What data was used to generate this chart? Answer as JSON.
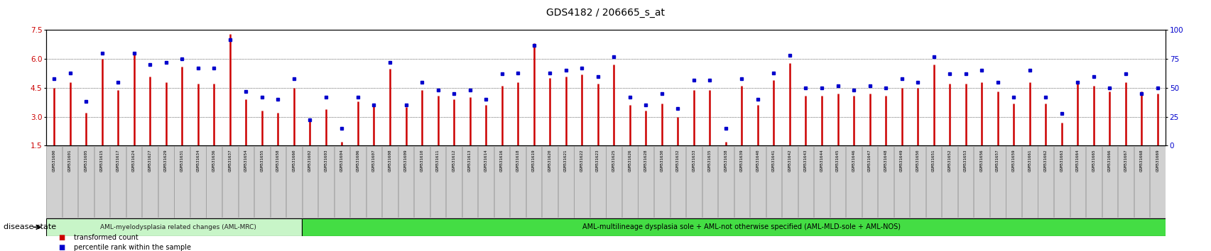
{
  "title": "GDS4182 / 206665_s_at",
  "ylim_left": [
    1.5,
    7.5
  ],
  "ylim_right": [
    0,
    100
  ],
  "yticks_left": [
    1.5,
    3.0,
    4.5,
    6.0,
    7.5
  ],
  "yticks_right": [
    0,
    25,
    50,
    75,
    100
  ],
  "bar_color": "#cc0000",
  "dot_color": "#0000cc",
  "tick_bg": "#d0d0d0",
  "tick_edge": "#888888",
  "group1_color": "#c8f5c8",
  "group1_edge": "#000000",
  "group2_color": "#44dd44",
  "group2_edge": "#000000",
  "group1_label": "AML-myelodysplasia related changes (AML-MRC)",
  "group2_label": "AML-multilineage dysplasia sole + AML-not otherwise specified (AML-MLD-sole + AML-NOS)",
  "disease_state_label": "disease state",
  "legend_bar": "transformed count",
  "legend_dot": "percentile rank within the sample",
  "samples": [
    "GSM531600",
    "GSM531601",
    "GSM531605",
    "GSM531615",
    "GSM531617",
    "GSM531624",
    "GSM531627",
    "GSM531629",
    "GSM531631",
    "GSM531634",
    "GSM531636",
    "GSM531637",
    "GSM531654",
    "GSM531655",
    "GSM531658",
    "GSM531660",
    "GSM531602",
    "GSM531603",
    "GSM531604",
    "GSM531606",
    "GSM531607",
    "GSM531608",
    "GSM531609",
    "GSM531610",
    "GSM531611",
    "GSM531612",
    "GSM531613",
    "GSM531614",
    "GSM531616",
    "GSM531618",
    "GSM531619",
    "GSM531620",
    "GSM531621",
    "GSM531622",
    "GSM531623",
    "GSM531625",
    "GSM531626",
    "GSM531628",
    "GSM531630",
    "GSM531632",
    "GSM531633",
    "GSM531635",
    "GSM531638",
    "GSM531639",
    "GSM531640",
    "GSM531641",
    "GSM531642",
    "GSM531643",
    "GSM531644",
    "GSM531645",
    "GSM531646",
    "GSM531647",
    "GSM531648",
    "GSM531649",
    "GSM531650",
    "GSM531651",
    "GSM531652",
    "GSM531653",
    "GSM531656",
    "GSM531657",
    "GSM531659",
    "GSM531661",
    "GSM531662",
    "GSM531663",
    "GSM531664",
    "GSM531665",
    "GSM531666",
    "GSM531667",
    "GSM531668",
    "GSM531669"
  ],
  "bar_heights": [
    4.5,
    4.8,
    3.2,
    6.0,
    4.4,
    6.3,
    5.1,
    4.8,
    5.6,
    4.7,
    4.7,
    7.3,
    3.9,
    3.3,
    3.2,
    4.5,
    2.9,
    3.4,
    1.7,
    3.8,
    3.6,
    5.5,
    3.5,
    4.4,
    4.1,
    3.9,
    4.0,
    3.6,
    4.6,
    4.8,
    6.8,
    5.0,
    5.1,
    5.2,
    4.7,
    5.7,
    3.6,
    3.3,
    3.7,
    3.0,
    4.4,
    4.4,
    1.7,
    4.6,
    3.6,
    4.9,
    5.8,
    4.1,
    4.1,
    4.2,
    4.1,
    4.2,
    4.1,
    4.5,
    4.5,
    5.7,
    4.7,
    4.7,
    4.8,
    4.3,
    3.7,
    4.8,
    3.7,
    2.7,
    4.7,
    4.6,
    4.3,
    4.8,
    4.3,
    4.2
  ],
  "dot_heights": [
    58,
    63,
    38,
    80,
    55,
    80,
    70,
    72,
    75,
    67,
    67,
    92,
    47,
    42,
    40,
    58,
    22,
    42,
    15,
    42,
    35,
    72,
    35,
    55,
    48,
    45,
    48,
    40,
    62,
    63,
    87,
    63,
    65,
    67,
    60,
    77,
    42,
    35,
    45,
    32,
    57,
    57,
    15,
    58,
    40,
    63,
    78,
    50,
    50,
    52,
    48,
    52,
    50,
    58,
    55,
    77,
    62,
    62,
    65,
    55,
    42,
    65,
    42,
    28,
    55,
    60,
    50,
    62,
    45,
    50
  ],
  "group1_count": 16
}
